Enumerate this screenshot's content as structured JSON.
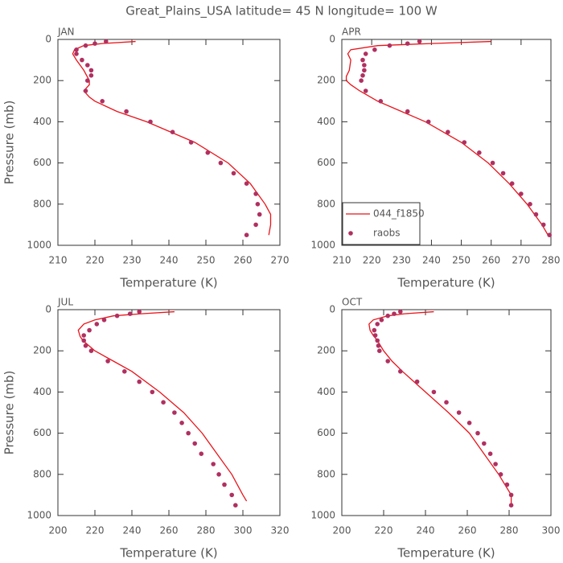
{
  "title": "Great_Plains_USA  latitude= 45 N longitude= 100 W",
  "chart_data": [
    {
      "type": "line",
      "title": "JAN",
      "xlabel": "Temperature (K)",
      "ylabel": "Pressure (mb)",
      "xlim": [
        210,
        270
      ],
      "xticks": [
        210,
        220,
        230,
        240,
        250,
        260,
        270
      ],
      "ylim": [
        1000,
        0
      ],
      "yticks": [
        0,
        200,
        400,
        600,
        800,
        1000
      ],
      "series": [
        {
          "style": "line",
          "color": "#e8141a",
          "x": [
            231,
            222,
            217,
            214.5,
            214,
            215,
            217,
            218.5,
            218.5,
            217,
            218.5,
            220,
            226,
            234,
            247,
            256,
            262,
            266,
            267.5,
            267.5,
            267
          ],
          "y": [
            10,
            20,
            30,
            50,
            70,
            100,
            150,
            200,
            220,
            250,
            280,
            300,
            350,
            400,
            500,
            600,
            700,
            800,
            850,
            900,
            950
          ]
        },
        {
          "style": "scatter",
          "color": "#b03060",
          "x": [
            223,
            220,
            217.5,
            215,
            215,
            216.5,
            218,
            219,
            219,
            218,
            217.5,
            222,
            228.5,
            235,
            241,
            246,
            250.5,
            254,
            257.5,
            261,
            263.5,
            264,
            264.5,
            263.5,
            261
          ],
          "y": [
            10,
            20,
            30,
            50,
            70,
            100,
            125,
            150,
            175,
            200,
            250,
            300,
            350,
            400,
            450,
            500,
            550,
            600,
            650,
            700,
            750,
            800,
            850,
            900,
            950
          ]
        }
      ]
    },
    {
      "type": "line",
      "title": "APR",
      "xlabel": "Temperature (K)",
      "legend": "lower left",
      "xlim": [
        210,
        280
      ],
      "xticks": [
        210,
        220,
        230,
        240,
        250,
        260,
        270,
        280
      ],
      "ylim": [
        1000,
        0
      ],
      "yticks": [
        0,
        200,
        400,
        600,
        800,
        1000
      ],
      "series": [
        {
          "name": "044_f1850",
          "style": "line",
          "color": "#e8141a",
          "x": [
            260,
            240,
            222,
            213,
            212,
            213,
            212.5,
            211.5,
            211.5,
            213,
            216,
            222,
            230,
            238,
            250,
            259,
            266,
            272,
            277,
            279
          ],
          "y": [
            10,
            20,
            30,
            50,
            70,
            100,
            150,
            180,
            200,
            220,
            250,
            300,
            350,
            400,
            500,
            600,
            700,
            800,
            900,
            950
          ]
        },
        {
          "name": "raobs",
          "style": "scatter",
          "color": "#b03060",
          "x": [
            236,
            232,
            226,
            221,
            218,
            217,
            217.5,
            217.5,
            217,
            216.5,
            218,
            223,
            232,
            239,
            245.5,
            251,
            256,
            260.5,
            264,
            267,
            270,
            273,
            275,
            277.5,
            279.5
          ],
          "y": [
            10,
            20,
            30,
            50,
            70,
            100,
            125,
            150,
            175,
            200,
            250,
            300,
            350,
            400,
            450,
            500,
            550,
            600,
            650,
            700,
            750,
            800,
            850,
            900,
            950
          ]
        }
      ]
    },
    {
      "type": "line",
      "title": "JUL",
      "xlabel": "Temperature (K)",
      "ylabel": "Pressure (mb)",
      "xlim": [
        200,
        320
      ],
      "xticks": [
        200,
        220,
        240,
        260,
        280,
        300,
        320
      ],
      "ylim": [
        1000,
        0
      ],
      "yticks": [
        0,
        200,
        400,
        600,
        800,
        1000
      ],
      "series": [
        {
          "style": "line",
          "color": "#e8141a",
          "x": [
            263,
            245,
            230,
            220,
            214,
            211,
            212,
            213.5,
            220,
            230,
            240,
            255,
            268,
            278,
            286,
            294,
            300,
            302
          ],
          "y": [
            10,
            20,
            30,
            50,
            70,
            100,
            130,
            150,
            200,
            250,
            300,
            400,
            500,
            600,
            700,
            800,
            900,
            930
          ]
        },
        {
          "style": "scatter",
          "color": "#b03060",
          "x": [
            244,
            239,
            232,
            225,
            221,
            217,
            214,
            214,
            215,
            218,
            227,
            236,
            244,
            251,
            257,
            263,
            267,
            270.5,
            274,
            277.5,
            284,
            287,
            290,
            294,
            296
          ],
          "y": [
            10,
            20,
            30,
            50,
            70,
            100,
            125,
            150,
            175,
            200,
            250,
            300,
            350,
            400,
            450,
            500,
            550,
            600,
            650,
            700,
            750,
            800,
            850,
            900,
            950
          ]
        }
      ]
    },
    {
      "type": "line",
      "title": "OCT",
      "xlabel": "Temperature (K)",
      "xlim": [
        200,
        300
      ],
      "xticks": [
        200,
        220,
        240,
        260,
        280,
        300
      ],
      "ylim": [
        1000,
        0
      ],
      "yticks": [
        0,
        200,
        400,
        600,
        800,
        1000
      ],
      "series": [
        {
          "style": "line",
          "color": "#e8141a",
          "x": [
            244,
            230,
            222,
            215,
            213,
            213.5,
            215,
            217,
            220,
            224,
            229,
            240,
            251,
            261,
            268,
            275,
            281,
            281
          ],
          "y": [
            10,
            20,
            30,
            50,
            70,
            100,
            125,
            150,
            200,
            250,
            300,
            400,
            500,
            600,
            700,
            800,
            900,
            950
          ]
        },
        {
          "style": "scatter",
          "color": "#b03060",
          "x": [
            228,
            225,
            222,
            219,
            217,
            215.5,
            216,
            217,
            217.5,
            218,
            222,
            228,
            236,
            244,
            250,
            256,
            261,
            265,
            268,
            271,
            273.5,
            276,
            279,
            281,
            281
          ],
          "y": [
            10,
            20,
            30,
            50,
            70,
            100,
            125,
            150,
            175,
            200,
            250,
            300,
            350,
            400,
            450,
            500,
            550,
            600,
            650,
            700,
            750,
            800,
            850,
            900,
            950
          ]
        }
      ]
    }
  ]
}
